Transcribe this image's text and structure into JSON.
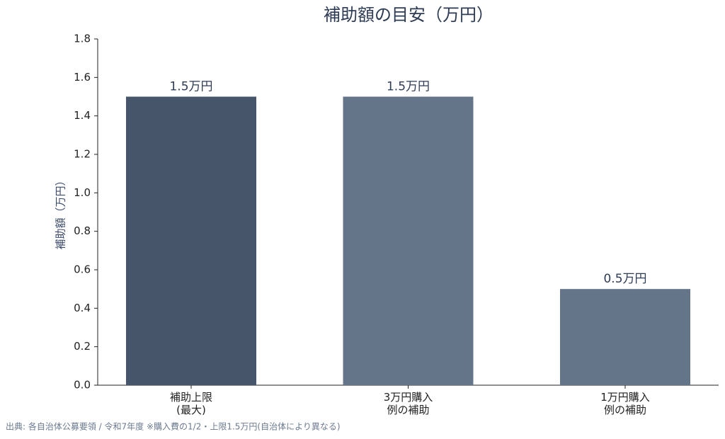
{
  "chart_data": {
    "type": "bar",
    "title": "補助額の目安（万円）",
    "y_label": "補助額（万円）",
    "categories": [
      [
        "補助上限",
        "(最大)"
      ],
      [
        "3万円購入",
        "例の補助"
      ],
      [
        "1万円購入",
        "例の補助"
      ]
    ],
    "values": [
      1.5,
      1.5,
      0.5
    ],
    "value_labels": [
      "1.5万円",
      "1.5万円",
      "0.5万円"
    ],
    "colors": [
      "#465569",
      "#647489",
      "#647489"
    ],
    "ylim": [
      0,
      1.8
    ],
    "yticks": [
      {
        "value": 0,
        "label": "0.0"
      },
      {
        "value": 0.2,
        "label": "0.2"
      },
      {
        "value": 0.4,
        "label": "0.4"
      },
      {
        "value": 0.6,
        "label": "0.6"
      },
      {
        "value": 0.8,
        "label": "0.8"
      },
      {
        "value": 1.0,
        "label": "1.0"
      },
      {
        "value": 1.2,
        "label": "1.2"
      },
      {
        "value": 1.4,
        "label": "1.4"
      },
      {
        "value": 1.6,
        "label": "1.6"
      },
      {
        "value": 1.8,
        "label": "1.8"
      }
    ],
    "grid": false,
    "source": "出典: 各自治体公募要領 / 令和7年度 ※購入費の1/2・上限1.5万円(自治体により異なる)"
  }
}
